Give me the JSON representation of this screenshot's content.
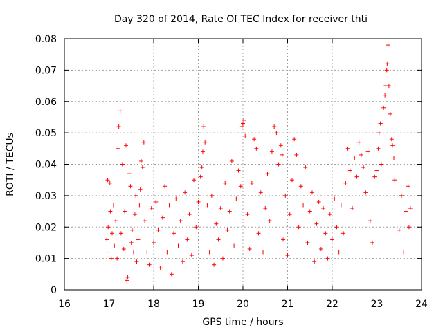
{
  "chart_data": {
    "type": "scatter",
    "title": "Day 320 of 2014, Rate Of TEC Index for receiver thti",
    "xlabel": "GPS time / hours",
    "ylabel": "ROTI / TECUs",
    "xlim": [
      16,
      24
    ],
    "ylim": [
      0,
      0.08
    ],
    "grid": true,
    "marker": "+",
    "color": "#ff0000",
    "x_ticks": [
      16,
      17,
      18,
      19,
      20,
      21,
      22,
      23,
      24
    ],
    "x_tick_labels": [
      "16",
      "17",
      "18",
      "19",
      "20",
      "21",
      "22",
      "23",
      "24"
    ],
    "y_ticks": [
      0,
      0.01,
      0.02,
      0.03,
      0.04,
      0.05,
      0.06,
      0.07,
      0.08
    ],
    "y_tick_labels": [
      "0",
      "0.01",
      "0.02",
      "0.03",
      "0.04",
      "0.05",
      "0.06",
      "0.07",
      "0.08"
    ],
    "series": [
      {
        "name": "ROTI",
        "points": [
          [
            16.95,
            0.016
          ],
          [
            16.97,
            0.035
          ],
          [
            16.98,
            0.02
          ],
          [
            17.0,
            0.012
          ],
          [
            17.02,
            0.034
          ],
          [
            17.03,
            0.025
          ],
          [
            17.05,
            0.01
          ],
          [
            17.07,
            0.018
          ],
          [
            17.1,
            0.027
          ],
          [
            17.12,
            0.014
          ],
          [
            17.15,
            0.022
          ],
          [
            17.18,
            0.01
          ],
          [
            17.2,
            0.045
          ],
          [
            17.22,
            0.052
          ],
          [
            17.25,
            0.057
          ],
          [
            17.27,
            0.018
          ],
          [
            17.3,
            0.04
          ],
          [
            17.33,
            0.013
          ],
          [
            17.35,
            0.025
          ],
          [
            17.38,
            0.046
          ],
          [
            17.4,
            0.003
          ],
          [
            17.42,
            0.004
          ],
          [
            17.45,
            0.037
          ],
          [
            17.48,
            0.033
          ],
          [
            17.5,
            0.015
          ],
          [
            17.52,
            0.019
          ],
          [
            17.55,
            0.012
          ],
          [
            17.58,
            0.024
          ],
          [
            17.6,
            0.03
          ],
          [
            17.62,
            0.009
          ],
          [
            17.65,
            0.016
          ],
          [
            17.68,
            0.027
          ],
          [
            17.7,
            0.032
          ],
          [
            17.72,
            0.041
          ],
          [
            17.75,
            0.039
          ],
          [
            17.78,
            0.047
          ],
          [
            17.8,
            0.022
          ],
          [
            17.85,
            0.012
          ],
          [
            17.9,
            0.008
          ],
          [
            17.95,
            0.026
          ],
          [
            18.0,
            0.015
          ],
          [
            18.05,
            0.028
          ],
          [
            18.1,
            0.019
          ],
          [
            18.15,
            0.007
          ],
          [
            18.2,
            0.023
          ],
          [
            18.25,
            0.033
          ],
          [
            18.3,
            0.012
          ],
          [
            18.35,
            0.027
          ],
          [
            18.4,
            0.005
          ],
          [
            18.45,
            0.018
          ],
          [
            18.5,
            0.029
          ],
          [
            18.55,
            0.014
          ],
          [
            18.6,
            0.022
          ],
          [
            18.65,
            0.009
          ],
          [
            18.7,
            0.031
          ],
          [
            18.75,
            0.016
          ],
          [
            18.8,
            0.024
          ],
          [
            18.85,
            0.011
          ],
          [
            18.9,
            0.035
          ],
          [
            18.95,
            0.02
          ],
          [
            19.0,
            0.028
          ],
          [
            19.05,
            0.036
          ],
          [
            19.08,
            0.039
          ],
          [
            19.1,
            0.044
          ],
          [
            19.12,
            0.052
          ],
          [
            19.15,
            0.047
          ],
          [
            19.2,
            0.027
          ],
          [
            19.25,
            0.012
          ],
          [
            19.3,
            0.03
          ],
          [
            19.35,
            0.008
          ],
          [
            19.4,
            0.021
          ],
          [
            19.45,
            0.016
          ],
          [
            19.5,
            0.026
          ],
          [
            19.55,
            0.01
          ],
          [
            19.6,
            0.034
          ],
          [
            19.65,
            0.019
          ],
          [
            19.7,
            0.025
          ],
          [
            19.75,
            0.041
          ],
          [
            19.8,
            0.014
          ],
          [
            19.85,
            0.029
          ],
          [
            19.9,
            0.038
          ],
          [
            19.95,
            0.033
          ],
          [
            19.98,
            0.052
          ],
          [
            20.0,
            0.053
          ],
          [
            20.02,
            0.054
          ],
          [
            20.05,
            0.049
          ],
          [
            20.1,
            0.024
          ],
          [
            20.15,
            0.013
          ],
          [
            20.2,
            0.034
          ],
          [
            20.25,
            0.048
          ],
          [
            20.3,
            0.045
          ],
          [
            20.35,
            0.018
          ],
          [
            20.4,
            0.031
          ],
          [
            20.45,
            0.012
          ],
          [
            20.5,
            0.026
          ],
          [
            20.55,
            0.037
          ],
          [
            20.6,
            0.022
          ],
          [
            20.65,
            0.044
          ],
          [
            20.7,
            0.052
          ],
          [
            20.75,
            0.05
          ],
          [
            20.8,
            0.04
          ],
          [
            20.85,
            0.046
          ],
          [
            20.88,
            0.043
          ],
          [
            20.9,
            0.016
          ],
          [
            20.95,
            0.03
          ],
          [
            21.0,
            0.011
          ],
          [
            21.05,
            0.024
          ],
          [
            21.1,
            0.035
          ],
          [
            21.15,
            0.048
          ],
          [
            21.2,
            0.043
          ],
          [
            21.25,
            0.02
          ],
          [
            21.3,
            0.033
          ],
          [
            21.35,
            0.027
          ],
          [
            21.4,
            0.039
          ],
          [
            21.45,
            0.015
          ],
          [
            21.5,
            0.025
          ],
          [
            21.55,
            0.031
          ],
          [
            21.6,
            0.009
          ],
          [
            21.65,
            0.021
          ],
          [
            21.7,
            0.028
          ],
          [
            21.75,
            0.013
          ],
          [
            21.8,
            0.026
          ],
          [
            21.85,
            0.018
          ],
          [
            21.9,
            0.01
          ],
          [
            21.95,
            0.024
          ],
          [
            22.0,
            0.016
          ],
          [
            22.05,
            0.029
          ],
          [
            22.1,
            0.02
          ],
          [
            22.15,
            0.012
          ],
          [
            22.2,
            0.027
          ],
          [
            22.25,
            0.018
          ],
          [
            22.3,
            0.034
          ],
          [
            22.35,
            0.045
          ],
          [
            22.4,
            0.038
          ],
          [
            22.45,
            0.026
          ],
          [
            22.5,
            0.042
          ],
          [
            22.55,
            0.036
          ],
          [
            22.6,
            0.047
          ],
          [
            22.65,
            0.043
          ],
          [
            22.7,
            0.039
          ],
          [
            22.75,
            0.031
          ],
          [
            22.8,
            0.044
          ],
          [
            22.85,
            0.022
          ],
          [
            22.9,
            0.015
          ],
          [
            22.95,
            0.036
          ],
          [
            23.0,
            0.038
          ],
          [
            23.03,
            0.045
          ],
          [
            23.05,
            0.05
          ],
          [
            23.08,
            0.053
          ],
          [
            23.1,
            0.04
          ],
          [
            23.15,
            0.058
          ],
          [
            23.18,
            0.062
          ],
          [
            23.2,
            0.065
          ],
          [
            23.22,
            0.07
          ],
          [
            23.23,
            0.072
          ],
          [
            23.25,
            0.078
          ],
          [
            23.27,
            0.065
          ],
          [
            23.3,
            0.056
          ],
          [
            23.33,
            0.048
          ],
          [
            23.35,
            0.046
          ],
          [
            23.38,
            0.042
          ],
          [
            23.4,
            0.035
          ],
          [
            23.45,
            0.027
          ],
          [
            23.5,
            0.019
          ],
          [
            23.55,
            0.03
          ],
          [
            23.6,
            0.012
          ],
          [
            23.65,
            0.025
          ],
          [
            23.7,
            0.033
          ],
          [
            23.72,
            0.02
          ],
          [
            23.75,
            0.026
          ]
        ]
      }
    ]
  }
}
